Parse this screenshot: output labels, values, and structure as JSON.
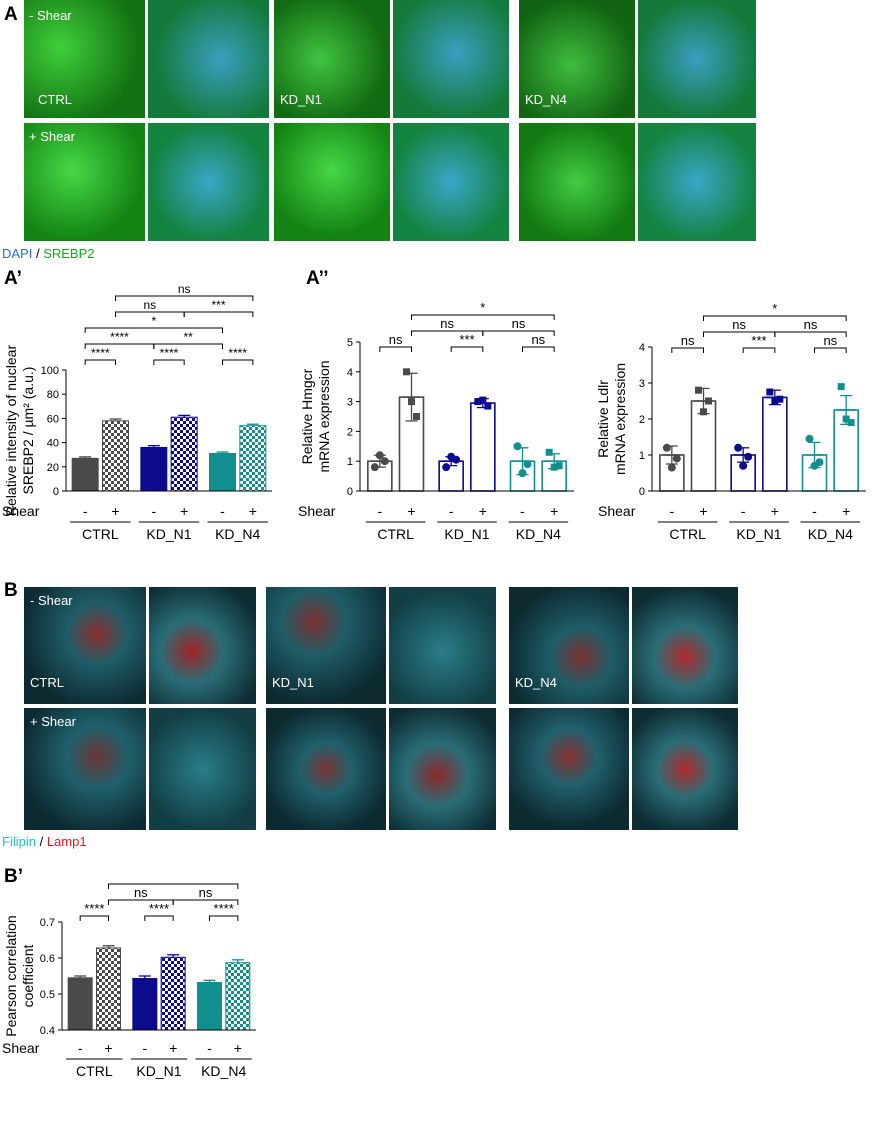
{
  "panel_letters": {
    "A": "A",
    "A1": "A’",
    "A2": "A’’",
    "B": "B",
    "B1": "B’"
  },
  "colors": {
    "ctrl": "#4a4a4a",
    "kd_n1": "#0b0b8c",
    "kd_n4": "#118f8f",
    "srebp2_green": "#19a51a",
    "dapi_blue": "#2a6fd0",
    "filipin_cyan": "#37d6e6",
    "lamp1_red": "#e01a1a"
  },
  "figA": {
    "row_labels": [
      "- Shear",
      "+ Shear"
    ],
    "group_labels": [
      "CTRL",
      "KD_N1",
      "KD_N4"
    ],
    "legend": {
      "a": "DAPI",
      "sep": " / ",
      "b": "SREBP2"
    }
  },
  "figB": {
    "row_labels": [
      "- Shear",
      "+ Shear"
    ],
    "group_labels": [
      "CTRL",
      "KD_N1",
      "KD_N4"
    ],
    "legend": {
      "a": "Filipin",
      "sep": " / ",
      "b": "Lamp1"
    }
  },
  "chart_data": [
    {
      "id": "A1",
      "type": "bar",
      "ylabel_lines": [
        "Relative intensity of nuclear",
        "SREBP2 / µm² (a.u.)"
      ],
      "ylim": [
        0,
        100
      ],
      "yticks": [
        0,
        20,
        40,
        60,
        80,
        100
      ],
      "categories": [
        "CTRL -",
        "CTRL +",
        "KD_N1 -",
        "KD_N1 +",
        "KD_N4 -",
        "KD_N4 +"
      ],
      "values": [
        27,
        58,
        36,
        61,
        31,
        54
      ],
      "errors": [
        1.2,
        1.5,
        1.5,
        1.5,
        1.2,
        1.2
      ],
      "shear_label": "Shear",
      "shear_signs": [
        "-",
        "+",
        "-",
        "+",
        "-",
        "+"
      ],
      "groups": [
        "CTRL",
        "KD_N1",
        "KD_N4"
      ],
      "significance": [
        {
          "from": 0,
          "to": 1,
          "label": "****",
          "level": 1
        },
        {
          "from": 2,
          "to": 3,
          "label": "****",
          "level": 1
        },
        {
          "from": 4,
          "to": 5,
          "label": "****",
          "level": 1
        },
        {
          "from": 0,
          "to": 2,
          "label": "****",
          "level": 2
        },
        {
          "from": 2,
          "to": 4,
          "label": "**",
          "level": 2
        },
        {
          "from": 0,
          "to": 4,
          "label": "*",
          "level": 3
        },
        {
          "from": 1,
          "to": 3,
          "label": "ns",
          "level": 4
        },
        {
          "from": 3,
          "to": 5,
          "label": "***",
          "level": 4
        },
        {
          "from": 1,
          "to": 5,
          "label": "ns",
          "level": 5
        }
      ]
    },
    {
      "id": "A2_hmgcr",
      "type": "bar",
      "ylabel_lines": [
        "Relative Hmgcr",
        "mRNA expression"
      ],
      "ylim": [
        0,
        5
      ],
      "yticks": [
        0,
        1,
        2,
        3,
        4,
        5
      ],
      "categories": [
        "CTRL -",
        "CTRL +",
        "KD_N1 -",
        "KD_N1 +",
        "KD_N4 -",
        "KD_N4 +"
      ],
      "values": [
        1.0,
        3.15,
        1.0,
        2.95,
        1.0,
        1.0
      ],
      "errors": [
        0.2,
        0.8,
        0.15,
        0.15,
        0.45,
        0.25
      ],
      "points": [
        [
          0.8,
          1.2,
          1.0
        ],
        [
          4.0,
          3.0,
          2.5
        ],
        [
          0.8,
          1.15,
          1.05
        ],
        [
          3.0,
          3.05,
          2.85
        ],
        [
          1.5,
          0.6,
          0.9
        ],
        [
          1.3,
          0.8,
          0.85
        ]
      ],
      "shear_label": "Shear",
      "shear_signs": [
        "-",
        "+",
        "-",
        "+",
        "-",
        "+"
      ],
      "groups": [
        "CTRL",
        "KD_N1",
        "KD_N4"
      ],
      "significance": [
        {
          "from": 0,
          "to": 1,
          "label": "ns",
          "level": 1
        },
        {
          "from": 2,
          "to": 3,
          "label": "***",
          "level": 1
        },
        {
          "from": 4,
          "to": 5,
          "label": "ns",
          "level": 1
        },
        {
          "from": 1,
          "to": 3,
          "label": "ns",
          "level": 2
        },
        {
          "from": 3,
          "to": 5,
          "label": "ns",
          "level": 2
        },
        {
          "from": 1,
          "to": 5,
          "label": "*",
          "level": 3
        }
      ]
    },
    {
      "id": "A2_ldlr",
      "type": "bar",
      "ylabel_lines": [
        "Relative Ldlr",
        "mRNA expression"
      ],
      "ylim": [
        0,
        4
      ],
      "yticks": [
        0,
        1,
        2,
        3,
        4
      ],
      "categories": [
        "CTRL -",
        "CTRL +",
        "KD_N1 -",
        "KD_N1 +",
        "KD_N4 -",
        "KD_N4 +"
      ],
      "values": [
        1.0,
        2.5,
        1.0,
        2.6,
        1.0,
        2.25
      ],
      "errors": [
        0.25,
        0.35,
        0.2,
        0.2,
        0.35,
        0.4
      ],
      "points": [
        [
          1.2,
          0.65,
          0.9
        ],
        [
          2.8,
          2.2,
          2.5
        ],
        [
          1.2,
          0.7,
          0.95
        ],
        [
          2.75,
          2.5,
          2.55
        ],
        [
          1.45,
          0.7,
          0.8
        ],
        [
          2.9,
          2.0,
          1.9
        ]
      ],
      "shear_label": "Shear",
      "shear_signs": [
        "-",
        "+",
        "-",
        "+",
        "-",
        "+"
      ],
      "groups": [
        "CTRL",
        "KD_N1",
        "KD_N4"
      ],
      "significance": [
        {
          "from": 0,
          "to": 1,
          "label": "ns",
          "level": 1
        },
        {
          "from": 2,
          "to": 3,
          "label": "***",
          "level": 1
        },
        {
          "from": 4,
          "to": 5,
          "label": "ns",
          "level": 1
        },
        {
          "from": 1,
          "to": 3,
          "label": "ns",
          "level": 2
        },
        {
          "from": 3,
          "to": 5,
          "label": "ns",
          "level": 2
        },
        {
          "from": 1,
          "to": 5,
          "label": "*",
          "level": 3
        }
      ]
    },
    {
      "id": "B1",
      "type": "bar",
      "ylabel_lines": [
        "Pearson correlation",
        "coefficient"
      ],
      "ylim": [
        0.4,
        0.7
      ],
      "yticks": [
        0.4,
        0.5,
        0.6,
        0.7
      ],
      "categories": [
        "CTRL -",
        "CTRL +",
        "KD_N1 -",
        "KD_N1 +",
        "KD_N4 -",
        "KD_N4 +"
      ],
      "values": [
        0.545,
        0.628,
        0.543,
        0.602,
        0.532,
        0.587
      ],
      "errors": [
        0.005,
        0.006,
        0.007,
        0.007,
        0.006,
        0.008
      ],
      "shear_label": "Shear",
      "shear_signs": [
        "-",
        "+",
        "-",
        "+",
        "-",
        "+"
      ],
      "groups": [
        "CTRL",
        "KD_N1",
        "KD_N4"
      ],
      "significance": [
        {
          "from": 0,
          "to": 1,
          "label": "****",
          "level": 1
        },
        {
          "from": 2,
          "to": 3,
          "label": "****",
          "level": 1
        },
        {
          "from": 4,
          "to": 5,
          "label": "****",
          "level": 1
        },
        {
          "from": 1,
          "to": 3,
          "label": "ns",
          "level": 2
        },
        {
          "from": 3,
          "to": 5,
          "label": "ns",
          "level": 2
        },
        {
          "from": 1,
          "to": 5,
          "label": "**",
          "level": 3
        }
      ]
    }
  ]
}
